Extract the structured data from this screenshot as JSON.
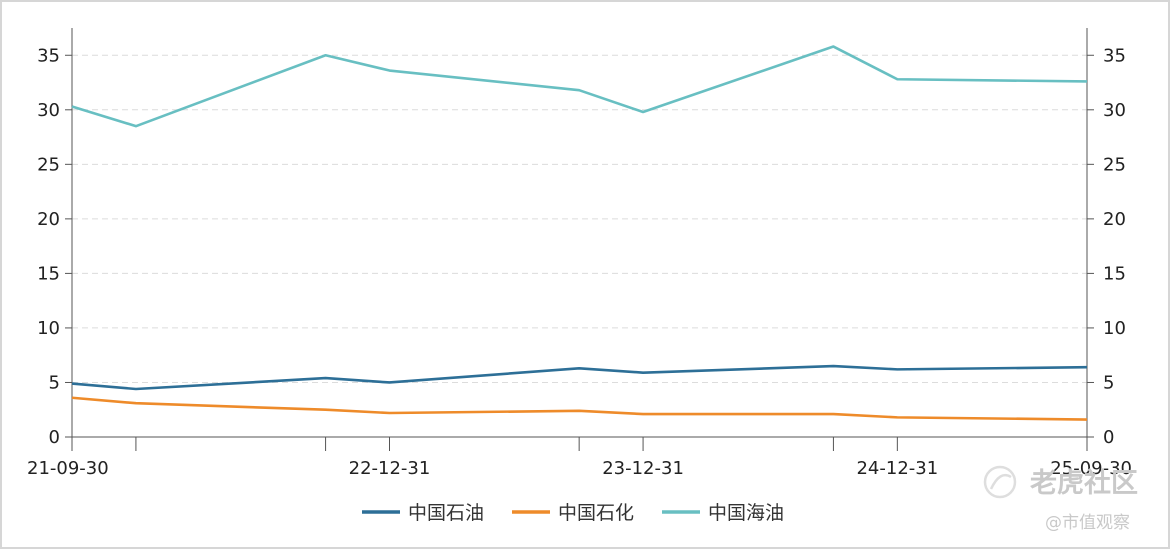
{
  "chart_data": {
    "type": "line",
    "x_ticks": [
      "21-09-30",
      "22-12-31",
      "23-12-31",
      "24-12-31",
      "25-09-30"
    ],
    "x": [
      "21-09-30",
      "21-12-31",
      "22-09-30",
      "22-12-31",
      "23-09-30",
      "23-12-31",
      "24-09-30",
      "24-12-31",
      "25-09-30"
    ],
    "ylim": [
      0,
      37.5
    ],
    "y_ticks": [
      "0",
      "5",
      "10",
      "15",
      "20",
      "25",
      "30",
      "35"
    ],
    "grid": true,
    "legend_position": "bottom",
    "series": [
      {
        "name": "中国石油",
        "color": "#2d6f97",
        "values": [
          4.9,
          4.4,
          5.4,
          5.0,
          6.3,
          5.9,
          6.5,
          6.2,
          6.4
        ]
      },
      {
        "name": "中国石化",
        "color": "#ee8b2a",
        "values": [
          3.6,
          3.1,
          2.5,
          2.2,
          2.4,
          2.1,
          2.1,
          1.8,
          1.6
        ]
      },
      {
        "name": "中国海油",
        "color": "#68bfc2",
        "values": [
          30.3,
          28.5,
          35.0,
          33.6,
          31.8,
          29.8,
          35.8,
          32.8,
          32.6
        ]
      }
    ]
  },
  "watermark": {
    "brand": "老虎社区",
    "handle": "@市值观察"
  }
}
